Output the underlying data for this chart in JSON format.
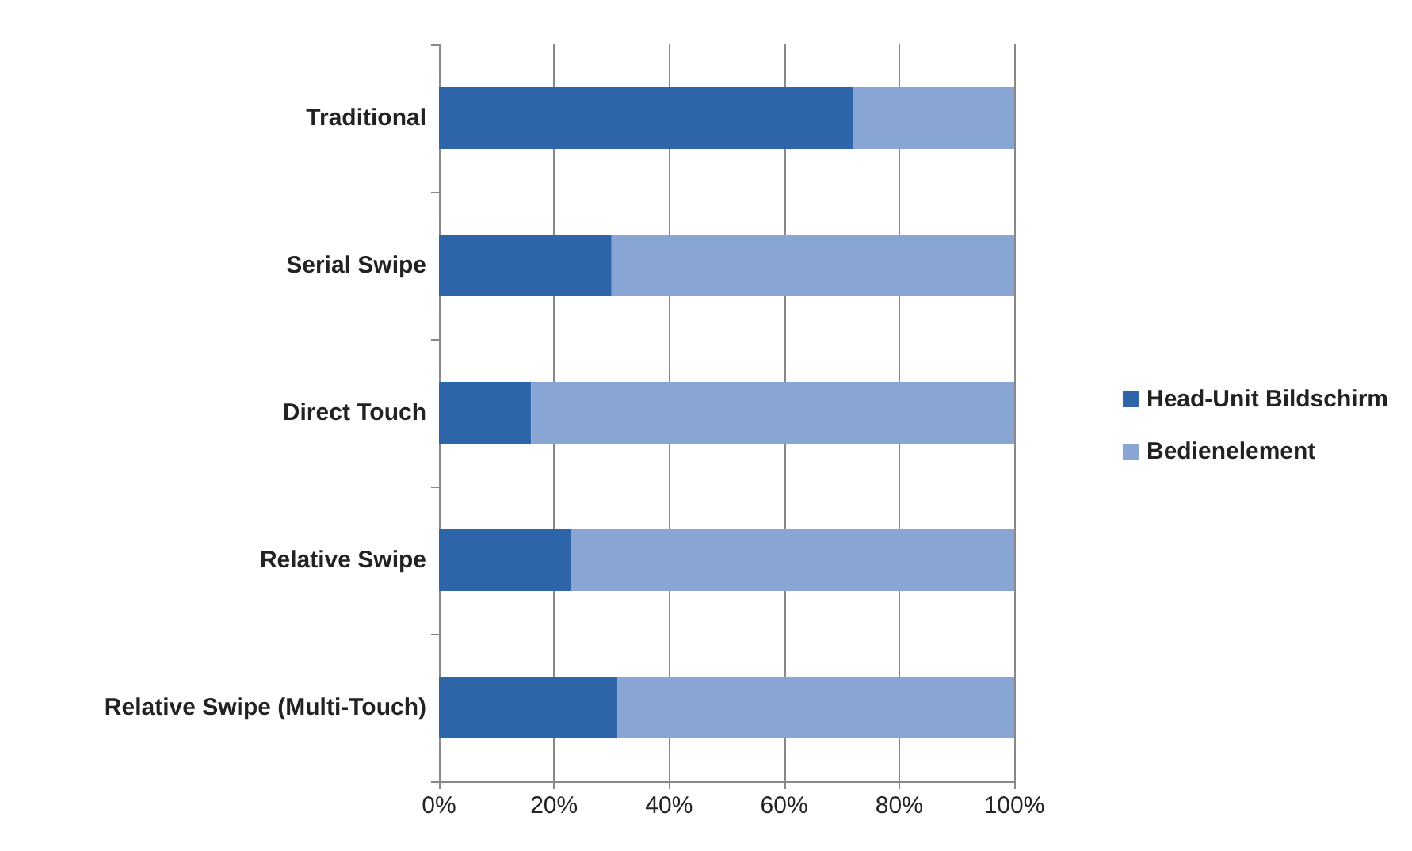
{
  "chart_data": {
    "type": "bar",
    "orientation": "horizontal",
    "stacked": true,
    "categories": [
      "Traditional",
      "Serial Swipe",
      "Direct Touch",
      "Relative Swipe",
      "Relative Swipe (Multi-Touch)"
    ],
    "series": [
      {
        "name": "Head-Unit Bildschirm",
        "color": "#2e64a8",
        "values": [
          72,
          30,
          16,
          23,
          31
        ]
      },
      {
        "name": "Bedienelement",
        "color": "#89a5d4",
        "values": [
          28,
          70,
          84,
          77,
          69
        ]
      }
    ],
    "xlim": [
      0,
      100
    ],
    "xticks": [
      {
        "value": 0,
        "label": "0%"
      },
      {
        "value": 20,
        "label": "20%"
      },
      {
        "value": 40,
        "label": "40%"
      },
      {
        "value": 60,
        "label": "60%"
      },
      {
        "value": 80,
        "label": "80%"
      },
      {
        "value": 100,
        "label": "100%"
      }
    ],
    "grid": "x",
    "legend": "right"
  }
}
